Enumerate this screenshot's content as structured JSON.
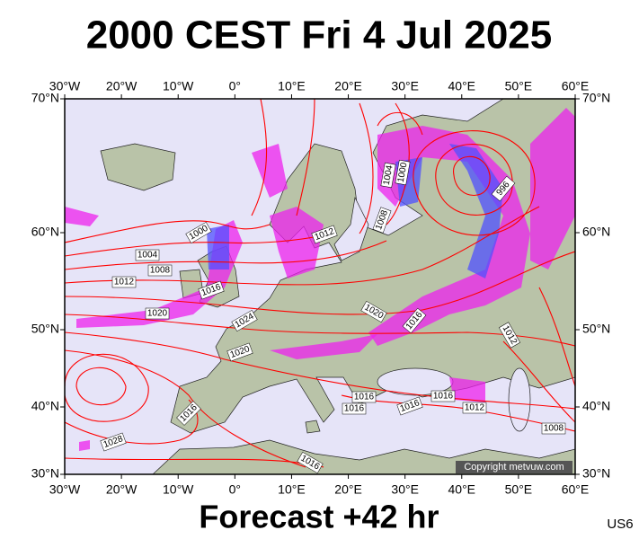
{
  "title": "2000 CEST Fri 4 Jul 2025",
  "footer": "Forecast +42 hr",
  "model_code": "US6",
  "copyright": "Copyright metvuw.com",
  "longitude_labels": [
    "30°W",
    "20°W",
    "10°W",
    "0°",
    "10°E",
    "20°E",
    "30°E",
    "40°E",
    "50°E",
    "60°E"
  ],
  "latitude_labels": [
    "70°N",
    "60°N",
    "50°N",
    "40°N",
    "30°N"
  ],
  "isobar_labels": [
    "1000",
    "1004",
    "1008",
    "1012",
    "1016",
    "1020",
    "1024",
    "1020",
    "1012",
    "1004",
    "1000",
    "1008",
    "996",
    "1020",
    "1016",
    "1012",
    "1016",
    "1016",
    "1016",
    "1016",
    "1012",
    "1016",
    "1028",
    "1016",
    "1008"
  ]
}
